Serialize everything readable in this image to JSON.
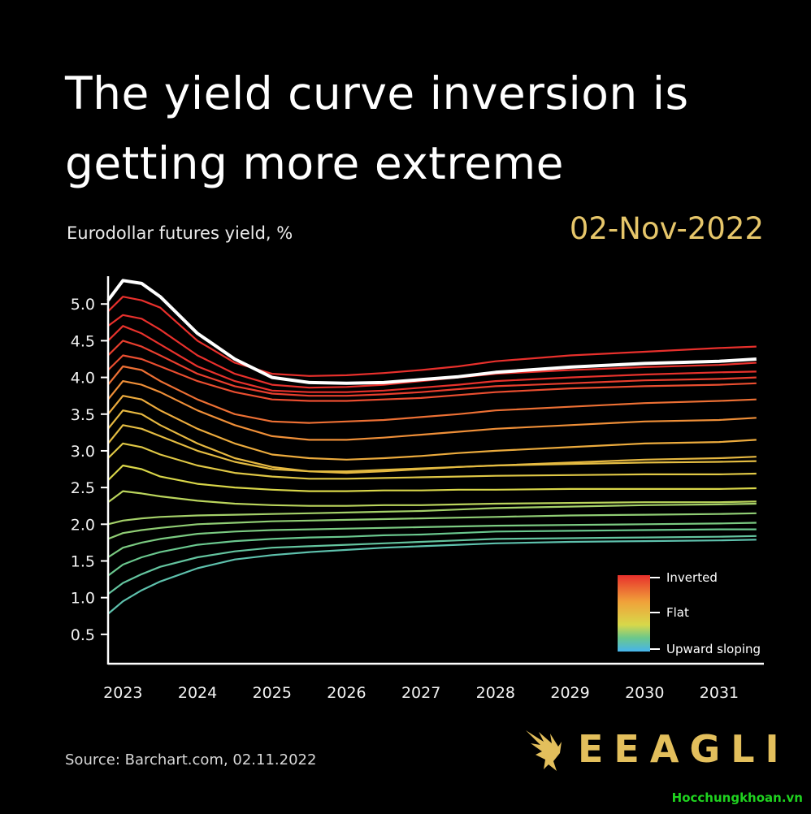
{
  "title": "The yield curve inversion is getting more extreme",
  "subtitle": "Eurodollar futures yield, %",
  "date": "02-Nov-2022",
  "source": "Source: Barchart.com, 02.11.2022",
  "brand": {
    "name": "EEAGLI",
    "icon": "eagle-logo-icon",
    "color": "#e3bf5c"
  },
  "watermark": "Hocchungkhoan.vn",
  "colors": {
    "inverted": "#e8302c",
    "flat": "#f0a23a",
    "upward": "#46b4ec",
    "current": "#ffffff"
  },
  "chart_data": {
    "type": "line",
    "title": "The yield curve inversion is getting more extreme",
    "ylabel": "Eurodollar futures yield, %",
    "xlabel": "",
    "xlim": [
      2022.8,
      2031.6
    ],
    "ylim": [
      0.1,
      5.6
    ],
    "y_ticks": [
      0.5,
      1.0,
      1.5,
      2.0,
      2.5,
      3.0,
      3.5,
      4.0,
      4.5,
      5.0
    ],
    "y_tick_labels": [
      "0.5",
      "1.0",
      "1.5",
      "2.0",
      "2.5",
      "3.0",
      "3.5",
      "4.0",
      "4.5",
      "5.0"
    ],
    "x_ticks": [
      2023,
      2024,
      2025,
      2026,
      2027,
      2028,
      2029,
      2030,
      2031
    ],
    "x_tick_labels": [
      "2023",
      "2024",
      "2025",
      "2026",
      "2027",
      "2028",
      "2029",
      "2030",
      "2031"
    ],
    "legend": {
      "placement": "bottom-right",
      "entries": [
        "Inverted",
        "Flat",
        "Upward sloping"
      ]
    },
    "x": [
      2022.8,
      2023.0,
      2023.25,
      2023.5,
      2024.0,
      2024.5,
      2025.0,
      2025.5,
      2026.0,
      2026.5,
      2027.0,
      2027.5,
      2028.0,
      2029.0,
      2030.0,
      2031.0,
      2031.5
    ],
    "series": [
      {
        "name": "02-Nov-2022",
        "highlight": true,
        "values": [
          5.05,
          5.32,
          5.28,
          5.1,
          4.6,
          4.25,
          4.0,
          3.93,
          3.92,
          3.93,
          3.97,
          4.01,
          4.07,
          4.14,
          4.19,
          4.22,
          4.25
        ]
      },
      {
        "name": "inverted-1",
        "values": [
          4.9,
          5.1,
          5.05,
          4.95,
          4.5,
          4.2,
          4.05,
          4.02,
          4.03,
          4.06,
          4.1,
          4.15,
          4.22,
          4.3,
          4.35,
          4.4,
          4.42
        ]
      },
      {
        "name": "inverted-2",
        "values": [
          4.7,
          4.85,
          4.8,
          4.65,
          4.3,
          4.05,
          3.9,
          3.86,
          3.87,
          3.9,
          3.95,
          4.0,
          4.05,
          4.1,
          4.14,
          4.17,
          4.2
        ]
      },
      {
        "name": "inverted-3",
        "values": [
          4.5,
          4.7,
          4.6,
          4.45,
          4.15,
          3.95,
          3.82,
          3.8,
          3.8,
          3.82,
          3.86,
          3.9,
          3.95,
          4.0,
          4.04,
          4.07,
          4.08
        ]
      },
      {
        "name": "inverted-4",
        "values": [
          4.3,
          4.5,
          4.42,
          4.3,
          4.05,
          3.88,
          3.78,
          3.75,
          3.75,
          3.77,
          3.8,
          3.84,
          3.88,
          3.92,
          3.96,
          3.98,
          4.0
        ]
      },
      {
        "name": "inverted-5",
        "values": [
          4.1,
          4.3,
          4.25,
          4.15,
          3.95,
          3.8,
          3.7,
          3.68,
          3.68,
          3.7,
          3.72,
          3.76,
          3.8,
          3.85,
          3.88,
          3.9,
          3.92
        ]
      },
      {
        "name": "flat-1",
        "values": [
          3.9,
          4.15,
          4.1,
          3.95,
          3.7,
          3.5,
          3.4,
          3.38,
          3.4,
          3.42,
          3.46,
          3.5,
          3.55,
          3.6,
          3.65,
          3.68,
          3.7
        ]
      },
      {
        "name": "flat-2",
        "values": [
          3.7,
          3.95,
          3.9,
          3.8,
          3.55,
          3.35,
          3.2,
          3.15,
          3.15,
          3.18,
          3.22,
          3.26,
          3.3,
          3.35,
          3.4,
          3.42,
          3.45
        ]
      },
      {
        "name": "flat-3",
        "values": [
          3.5,
          3.75,
          3.7,
          3.55,
          3.3,
          3.1,
          2.95,
          2.9,
          2.88,
          2.9,
          2.93,
          2.97,
          3.0,
          3.05,
          3.1,
          3.12,
          3.15
        ]
      },
      {
        "name": "flat-4",
        "values": [
          3.3,
          3.55,
          3.5,
          3.35,
          3.1,
          2.9,
          2.78,
          2.72,
          2.7,
          2.72,
          2.75,
          2.78,
          2.8,
          2.84,
          2.88,
          2.9,
          2.92
        ]
      },
      {
        "name": "flat-5",
        "values": [
          3.1,
          3.35,
          3.3,
          3.2,
          3.0,
          2.85,
          2.75,
          2.72,
          2.72,
          2.74,
          2.76,
          2.78,
          2.8,
          2.82,
          2.84,
          2.85,
          2.86
        ]
      },
      {
        "name": "transition-1",
        "values": [
          2.9,
          3.1,
          3.05,
          2.95,
          2.8,
          2.7,
          2.65,
          2.62,
          2.62,
          2.63,
          2.64,
          2.65,
          2.66,
          2.67,
          2.68,
          2.68,
          2.69
        ]
      },
      {
        "name": "transition-2",
        "values": [
          2.6,
          2.8,
          2.75,
          2.65,
          2.55,
          2.5,
          2.47,
          2.45,
          2.45,
          2.46,
          2.46,
          2.47,
          2.47,
          2.48,
          2.48,
          2.48,
          2.49
        ]
      },
      {
        "name": "transition-3",
        "values": [
          2.3,
          2.45,
          2.42,
          2.38,
          2.32,
          2.28,
          2.26,
          2.25,
          2.25,
          2.26,
          2.26,
          2.27,
          2.28,
          2.29,
          2.3,
          2.3,
          2.31
        ]
      },
      {
        "name": "upward-1",
        "values": [
          2.0,
          2.05,
          2.08,
          2.1,
          2.12,
          2.13,
          2.14,
          2.15,
          2.16,
          2.17,
          2.18,
          2.2,
          2.22,
          2.24,
          2.26,
          2.27,
          2.28
        ]
      },
      {
        "name": "upward-2",
        "values": [
          1.8,
          1.88,
          1.92,
          1.95,
          2.0,
          2.02,
          2.04,
          2.05,
          2.06,
          2.07,
          2.08,
          2.09,
          2.1,
          2.12,
          2.13,
          2.14,
          2.15
        ]
      },
      {
        "name": "upward-3",
        "values": [
          1.55,
          1.68,
          1.75,
          1.8,
          1.87,
          1.9,
          1.92,
          1.93,
          1.94,
          1.95,
          1.96,
          1.97,
          1.98,
          1.99,
          2.0,
          2.01,
          2.02
        ]
      },
      {
        "name": "upward-4",
        "values": [
          1.3,
          1.45,
          1.55,
          1.62,
          1.72,
          1.77,
          1.8,
          1.82,
          1.83,
          1.85,
          1.86,
          1.88,
          1.9,
          1.91,
          1.92,
          1.93,
          1.93
        ]
      },
      {
        "name": "upward-5",
        "values": [
          1.05,
          1.2,
          1.32,
          1.42,
          1.55,
          1.63,
          1.68,
          1.7,
          1.72,
          1.74,
          1.76,
          1.78,
          1.8,
          1.81,
          1.82,
          1.83,
          1.84
        ]
      },
      {
        "name": "upward-6",
        "values": [
          0.78,
          0.95,
          1.1,
          1.22,
          1.4,
          1.52,
          1.58,
          1.62,
          1.65,
          1.68,
          1.7,
          1.72,
          1.74,
          1.76,
          1.77,
          1.78,
          1.79
        ]
      }
    ]
  }
}
